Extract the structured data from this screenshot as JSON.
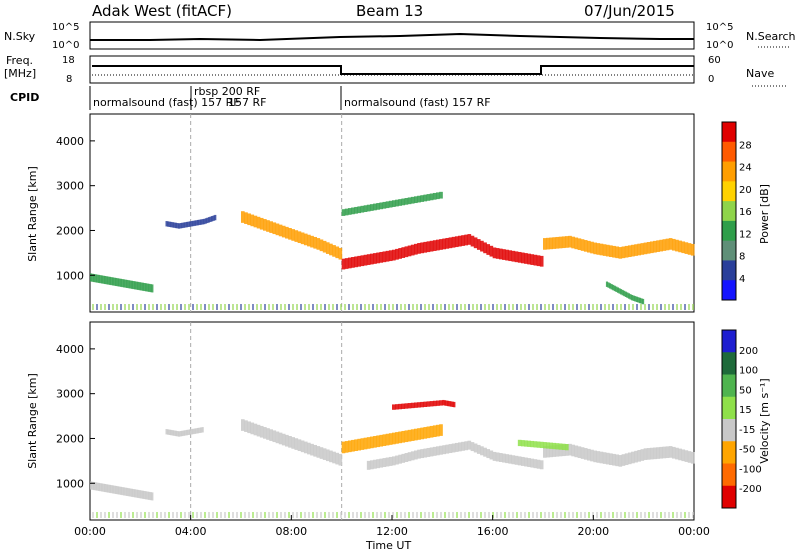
{
  "header": {
    "station": "Adak West (fitACF)",
    "beam": "Beam 13",
    "date": "07/Jun/2015"
  },
  "summary_panels": {
    "nsky_label": "N.Sky",
    "nsky_ticks": [
      "10^5",
      "10^0"
    ],
    "nsearch_label": "N.Search",
    "nsearch_ticks": [
      "10^5",
      "10^0"
    ],
    "freq_label": "Freq.",
    "freq_unit": "[MHz]",
    "freq_ticks": [
      "18",
      "8"
    ],
    "nave_label": "Nave",
    "nave_ticks": [
      "60",
      "0"
    ],
    "cpid_label": "CPID",
    "cpid_segments": [
      {
        "text": "normalsound (fast) 157 RF",
        "start": 0.0
      },
      {
        "text": "rbsp 200 RF",
        "start": 4.0
      },
      {
        "text": "157 RF",
        "start": 4.0
      },
      {
        "text": "normalsound (fast) 157 RF",
        "start": 10.0
      }
    ]
  },
  "chart_data": [
    {
      "type": "heatmap",
      "panel": "power",
      "ylabel": "Slant Range [km]",
      "ylim": [
        180,
        4600
      ],
      "yticks": [
        1000,
        2000,
        3000,
        4000
      ],
      "xlim": [
        0,
        24
      ],
      "colorbar": {
        "label": "Power [dB]",
        "ticks": [
          "28",
          "24",
          "20",
          "16",
          "12",
          "8",
          "4"
        ],
        "colors": [
          "#e00000",
          "#ff5a00",
          "#ff9e00",
          "#ffd200",
          "#8fd44a",
          "#2f9e4a",
          "#5f8f78",
          "#2a3f9a",
          "#1414ff"
        ]
      },
      "bands": [
        {
          "x": [
            0,
            0.5,
            1,
            1.5,
            2,
            2.5
          ],
          "y": [
            950,
            900,
            850,
            800,
            750,
            700
          ],
          "w": 180,
          "level": "mid"
        },
        {
          "x": [
            3,
            3.5,
            4,
            4.5,
            5
          ],
          "y": [
            2150,
            2100,
            2150,
            2200,
            2300
          ],
          "w": 120,
          "level": "low"
        },
        {
          "x": [
            6,
            7,
            8,
            9,
            10
          ],
          "y": [
            2300,
            2100,
            1900,
            1700,
            1450
          ],
          "w": 260,
          "level": "high"
        },
        {
          "x": [
            10,
            11,
            12,
            13,
            14,
            15,
            16,
            17,
            18
          ],
          "y": [
            1250,
            1350,
            1450,
            1600,
            1700,
            1800,
            1500,
            1400,
            1300
          ],
          "w": 240,
          "level": "max"
        },
        {
          "x": [
            10,
            11,
            12,
            13,
            14
          ],
          "y": [
            2400,
            2500,
            2600,
            2700,
            2800
          ],
          "w": 150,
          "level": "mid"
        },
        {
          "x": [
            18,
            19,
            20,
            21,
            22,
            23,
            24
          ],
          "y": [
            1700,
            1750,
            1600,
            1500,
            1600,
            1700,
            1550
          ],
          "w": 260,
          "level": "high"
        },
        {
          "x": [
            20.5,
            21,
            21.5,
            22
          ],
          "y": [
            800,
            650,
            500,
            400
          ],
          "w": 120,
          "level": "mid"
        }
      ]
    },
    {
      "type": "heatmap",
      "panel": "velocity",
      "xlabel": "Time UT",
      "ylabel": "Slant Range [km]",
      "ylim": [
        180,
        4600
      ],
      "yticks": [
        1000,
        2000,
        3000,
        4000
      ],
      "xlim": [
        0,
        24
      ],
      "xticks": [
        "00:00",
        "04:00",
        "08:00",
        "12:00",
        "16:00",
        "20:00",
        "00:00"
      ],
      "colorbar": {
        "label": "Velocity [m s⁻¹]",
        "ticks": [
          "200",
          "100",
          "50",
          "15",
          "-15",
          "-50",
          "-100",
          "-200"
        ],
        "colors": [
          "#1e1ed0",
          "#1e6a3a",
          "#4fb44f",
          "#8fe04a",
          "#c8c8c8",
          "#ffa500",
          "#ff6a00",
          "#e00000"
        ]
      },
      "bands": [
        {
          "x": [
            0,
            0.5,
            1,
            1.5,
            2,
            2.5
          ],
          "y": [
            950,
            900,
            850,
            800,
            750,
            700
          ],
          "w": 180,
          "level": "gray"
        },
        {
          "x": [
            3,
            3.5,
            4,
            4.5
          ],
          "y": [
            2150,
            2100,
            2150,
            2200
          ],
          "w": 120,
          "level": "gray"
        },
        {
          "x": [
            6,
            7,
            8,
            9,
            10
          ],
          "y": [
            2300,
            2100,
            1900,
            1700,
            1500
          ],
          "w": 260,
          "level": "gray"
        },
        {
          "x": [
            10,
            11,
            12,
            13,
            14
          ],
          "y": [
            1800,
            1900,
            2000,
            2100,
            2200
          ],
          "w": 260,
          "level": "orange"
        },
        {
          "x": [
            11,
            12,
            13,
            14,
            15,
            16,
            17,
            18
          ],
          "y": [
            1400,
            1500,
            1650,
            1750,
            1850,
            1600,
            1500,
            1400
          ],
          "w": 200,
          "level": "gray"
        },
        {
          "x": [
            12,
            13,
            14,
            14.5
          ],
          "y": [
            2700,
            2750,
            2800,
            2750
          ],
          "w": 120,
          "level": "red"
        },
        {
          "x": [
            18,
            19,
            20,
            21,
            22,
            23,
            24
          ],
          "y": [
            1700,
            1750,
            1600,
            1500,
            1650,
            1700,
            1550
          ],
          "w": 260,
          "level": "gray"
        },
        {
          "x": [
            17,
            18,
            19
          ],
          "y": [
            1900,
            1850,
            1800
          ],
          "w": 140,
          "level": "green"
        }
      ]
    }
  ]
}
